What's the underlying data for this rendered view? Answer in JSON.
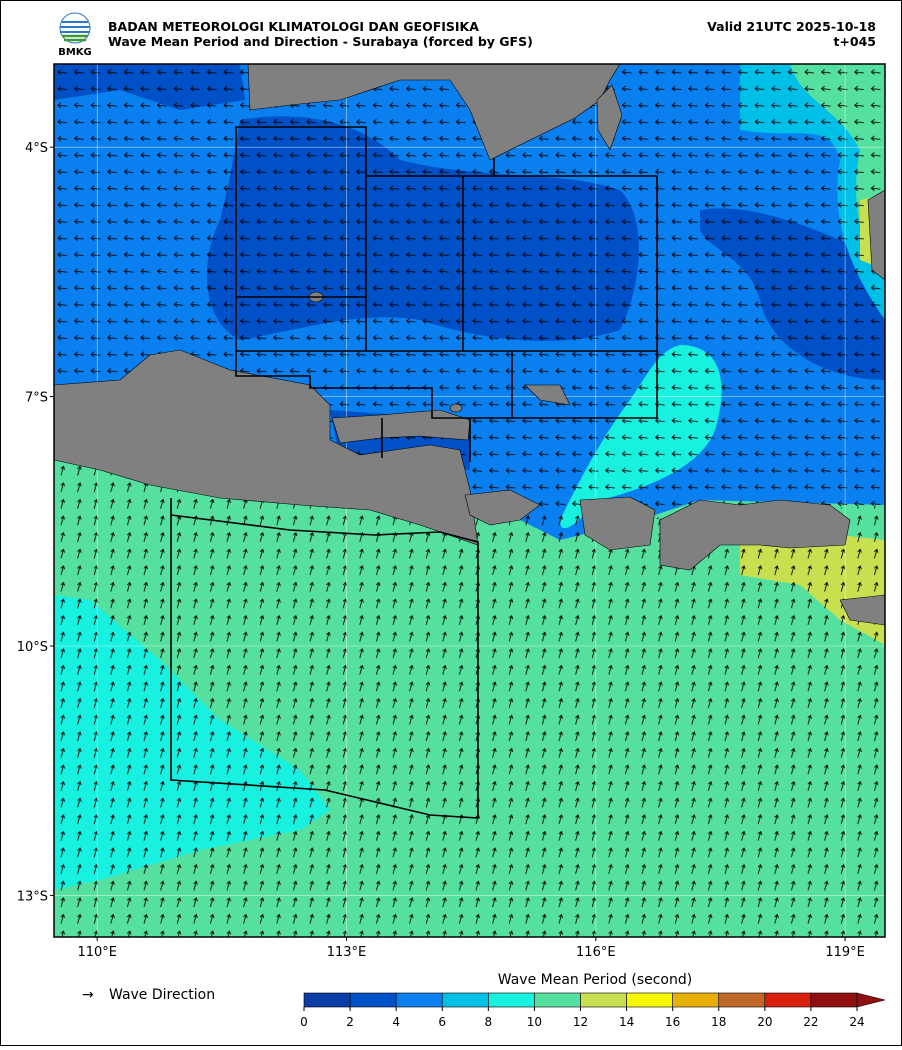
{
  "header": {
    "logo_text": "BMKG",
    "agency": "BADAN METEOROLOGI KLIMATOLOGI DAN GEOFISIKA",
    "product": "Wave Mean Period and Direction - Surabaya (forced by GFS)",
    "valid": "Valid 21UTC 2025-10-18",
    "lead": "t+045"
  },
  "map": {
    "lonlim": [
      109.48,
      119.48
    ],
    "latlim": [
      -13.5,
      -3.0
    ],
    "lonticks": [
      {
        "value": 110,
        "label": "110°E"
      },
      {
        "value": 113,
        "label": "113°E"
      },
      {
        "value": 116,
        "label": "116°E"
      },
      {
        "value": 119,
        "label": "119°E"
      }
    ],
    "latticks": [
      {
        "value": -4,
        "label": "4°S"
      },
      {
        "value": -7,
        "label": "7°S"
      },
      {
        "value": -10,
        "label": "10°S"
      },
      {
        "value": -13,
        "label": "13°S"
      }
    ]
  },
  "direction_legend": {
    "symbol": "→",
    "label": "Wave Direction"
  },
  "colorbar": {
    "title": "Wave Mean Period (second)",
    "ticks": [
      0,
      2,
      4,
      6,
      8,
      10,
      12,
      14,
      16,
      18,
      20,
      22,
      24
    ],
    "colors": [
      "#0a3ca8",
      "#0050c8",
      "#0a80f0",
      "#00c0e8",
      "#18f0e0",
      "#55e0a0",
      "#c8e050",
      "#f8f800",
      "#e8b000",
      "#c06828",
      "#d82010",
      "#901010"
    ]
  }
}
